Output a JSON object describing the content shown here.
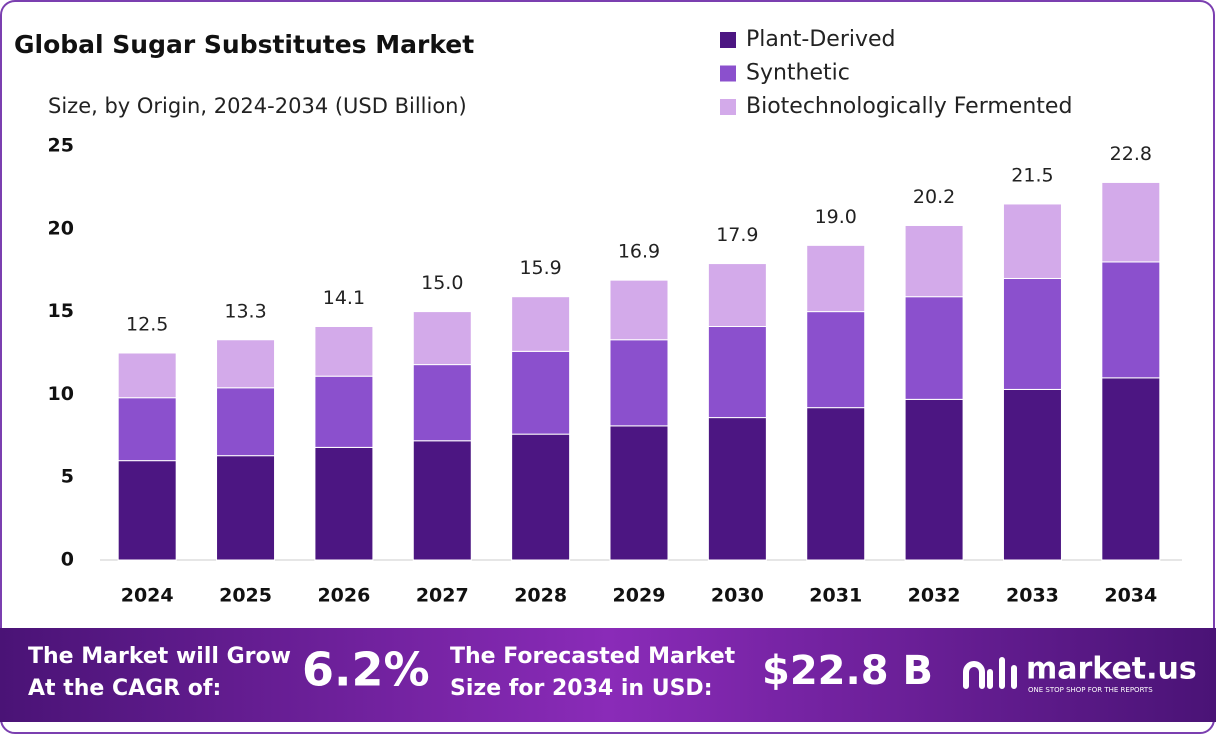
{
  "chart_data": {
    "type": "stacked-bar",
    "title": "Global Sugar Substitutes Market",
    "subtitle": "Size, by Origin, 2024-2034 (USD Billion)",
    "categories": [
      "2024",
      "2025",
      "2026",
      "2027",
      "2028",
      "2029",
      "2030",
      "2031",
      "2032",
      "2033",
      "2034"
    ],
    "series": [
      {
        "name": "Plant-Derived",
        "color": "#4c1682",
        "values": [
          6.0,
          6.3,
          6.8,
          7.2,
          7.6,
          8.1,
          8.6,
          9.2,
          9.7,
          10.3,
          11.0
        ]
      },
      {
        "name": "Synthetic",
        "color": "#8b50cd",
        "values": [
          3.8,
          4.1,
          4.3,
          4.6,
          5.0,
          5.2,
          5.5,
          5.8,
          6.2,
          6.7,
          7.0
        ]
      },
      {
        "name": "Biotechnologically Fermented",
        "color": "#d3aaea",
        "values": [
          2.7,
          2.9,
          3.0,
          3.2,
          3.3,
          3.6,
          3.8,
          4.0,
          4.3,
          4.5,
          4.8
        ]
      }
    ],
    "totals": [
      12.5,
      13.3,
      14.1,
      15.0,
      15.9,
      16.9,
      17.9,
      19.0,
      20.2,
      21.5,
      22.8
    ],
    "total_labels": [
      "12.5",
      "13.3",
      "14.1",
      "15.0",
      "15.9",
      "16.9",
      "17.9",
      "19.0",
      "20.2",
      "21.5",
      "22.8"
    ],
    "ylim": [
      0,
      25
    ],
    "yticks": [
      0,
      5,
      10,
      15,
      20,
      25
    ],
    "grid": false,
    "legend": "top-right"
  },
  "footer": {
    "cagr_text": [
      "The Market will Grow",
      "At the CAGR of:"
    ],
    "cagr": "6.2%",
    "forecast_text": [
      "The Forecasted Market",
      "Size for 2034 in USD:"
    ],
    "forecast": "$22.8 B",
    "brand": "market.us",
    "tagline": "ONE STOP SHOP FOR THE REPORTS"
  }
}
